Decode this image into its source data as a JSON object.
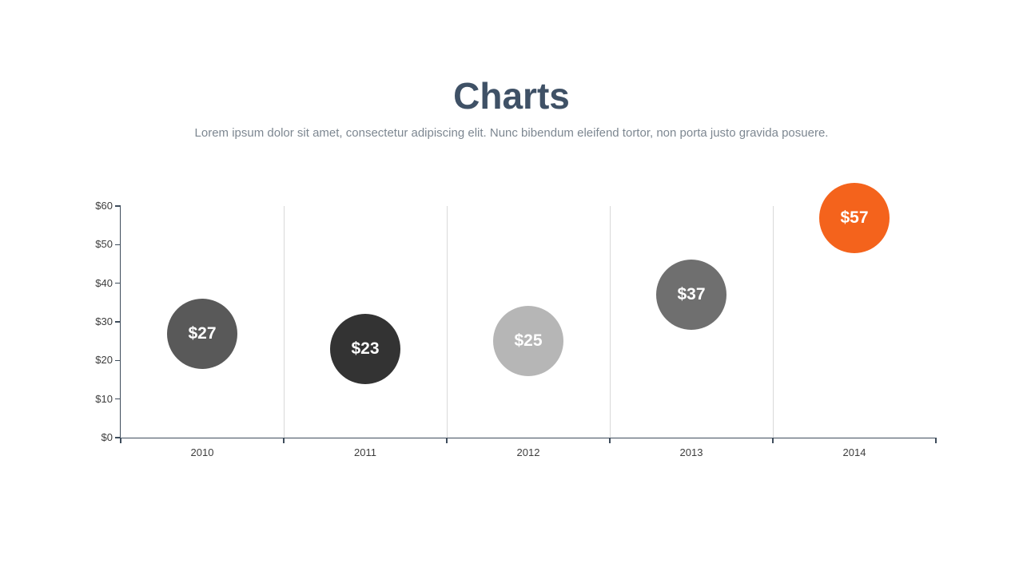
{
  "page": {
    "title": "Charts",
    "subtitle": "Lorem ipsum dolor sit amet, consectetur adipiscing elit. Nunc bibendum eleifend tortor, non porta justo gravida posuere."
  },
  "chart_data": {
    "type": "scatter",
    "subtype": "bubble",
    "title": "Charts",
    "categories": [
      "2010",
      "2011",
      "2012",
      "2013",
      "2014"
    ],
    "values": [
      27,
      23,
      25,
      37,
      57
    ],
    "point_labels": [
      "$27",
      "$23",
      "$25",
      "$37",
      "$57"
    ],
    "point_colors": [
      "#595959",
      "#333333",
      "#b6b6b6",
      "#6f6f6f",
      "#f4631c"
    ],
    "ylim": [
      0,
      60
    ],
    "ytick_step": 10,
    "ytick_labels": [
      "$0",
      "$10",
      "$20",
      "$30",
      "$40",
      "$50",
      "$60"
    ],
    "xtick_labels": [
      "2010",
      "2011",
      "2012",
      "2013",
      "2014"
    ],
    "grid": "vertical-category-boundaries",
    "legend": "none",
    "colors": {
      "axis": "#3f4d5c",
      "grid": "#d9d9d9",
      "tick_label": "#3d3d3d",
      "bubble_label": "#ffffff",
      "title": "#3f5166",
      "subtitle": "#7d8791"
    }
  }
}
